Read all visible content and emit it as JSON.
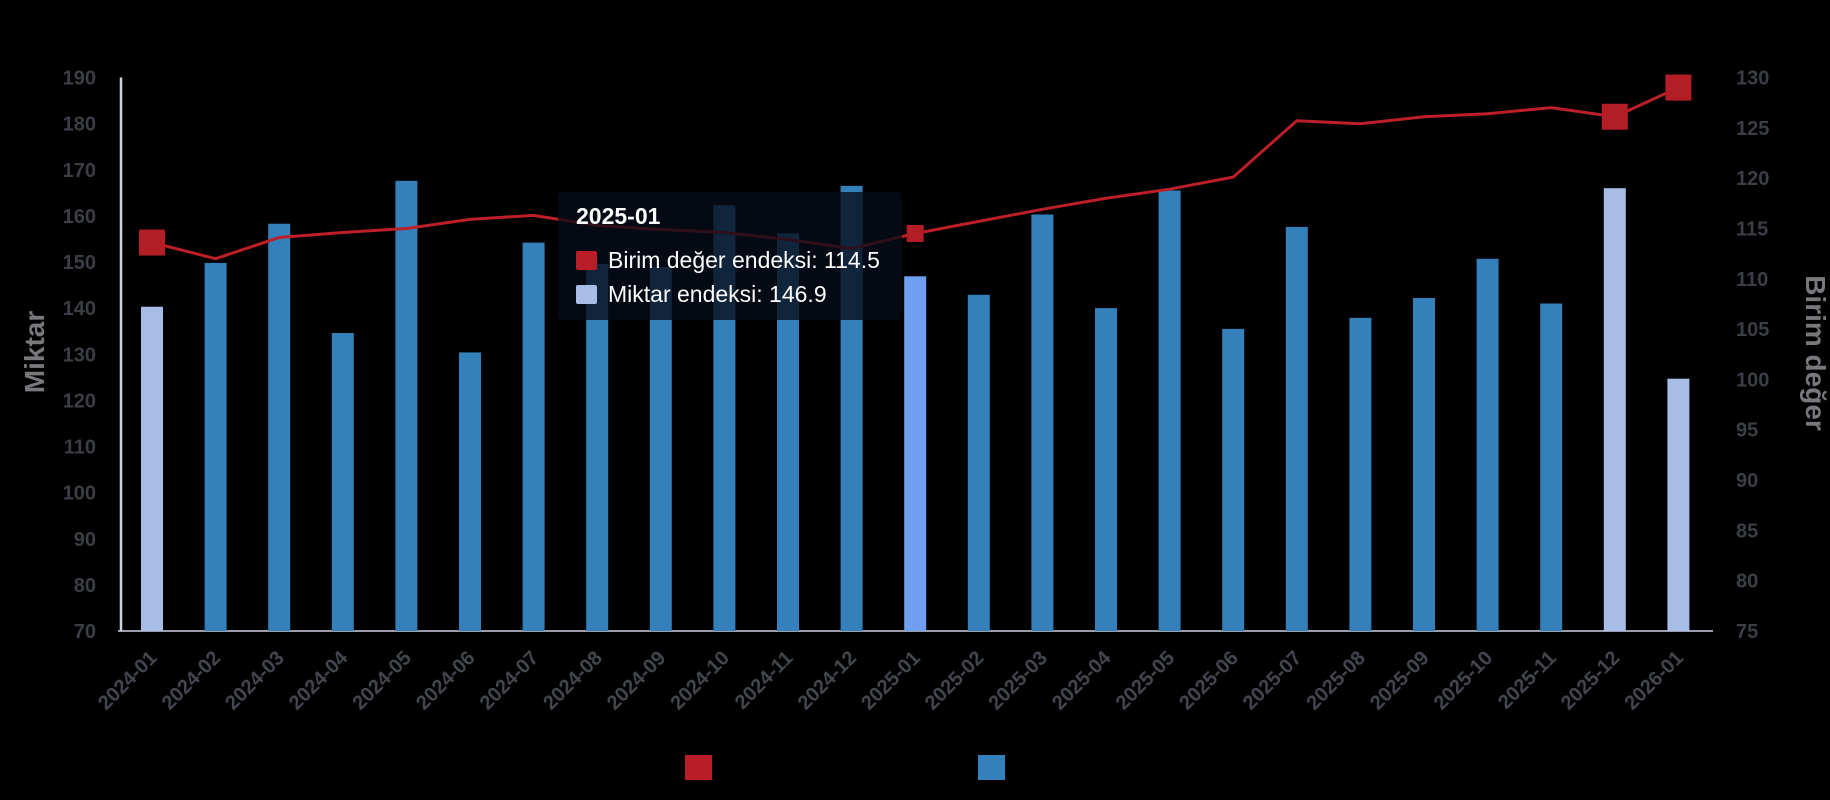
{
  "chart_data": {
    "type": "combo-bar-line",
    "categories": [
      "2024-01",
      "2024-02",
      "2024-03",
      "2024-04",
      "2024-05",
      "2024-06",
      "2024-07",
      "2024-08",
      "2024-09",
      "2024-10",
      "2024-11",
      "2024-12",
      "2025-01",
      "2025-02",
      "2025-03",
      "2025-04",
      "2025-05",
      "2025-06",
      "2025-07",
      "2025-08",
      "2025-09",
      "2025-10",
      "2025-11",
      "2025-12",
      "2026-01"
    ],
    "series": [
      {
        "name": "Miktar endeksi",
        "type": "bar",
        "axis": "left",
        "values": [
          140.3,
          149.8,
          158.3,
          134.6,
          167.6,
          130.4,
          154.2,
          149.6,
          148.9,
          162.3,
          156.2,
          166.5,
          146.9,
          142.9,
          160.3,
          140.0,
          165.5,
          135.5,
          157.6,
          137.9,
          142.2,
          150.7,
          141.0,
          166.0,
          124.7
        ]
      },
      {
        "name": "Birim değer endeksi",
        "type": "line",
        "axis": "right",
        "values": [
          113.6,
          112.0,
          114.1,
          114.6,
          115.0,
          115.9,
          116.3,
          115.3,
          114.9,
          114.6,
          113.9,
          113.0,
          114.5,
          115.7,
          116.9,
          118.0,
          118.9,
          120.1,
          125.7,
          125.4,
          126.1,
          126.4,
          127.0,
          126.1,
          129.0
        ]
      }
    ],
    "left_axis": {
      "title": "Miktar",
      "min": 70,
      "max": 190,
      "ticks": [
        70,
        80,
        90,
        100,
        110,
        120,
        130,
        140,
        150,
        160,
        170,
        180,
        190
      ]
    },
    "right_axis": {
      "title": "Birim değer",
      "min": 75,
      "max": 130,
      "ticks": [
        75,
        80,
        85,
        90,
        95,
        100,
        105,
        110,
        115,
        120,
        125,
        130
      ]
    },
    "grid": "off",
    "highlighted_category": "2025-01",
    "pale_bar_categories": [
      "2024-01",
      "2025-12",
      "2026-01"
    ],
    "big_marker_categories": [
      "2024-01",
      "2025-12",
      "2026-01"
    ],
    "small_marker_category": "2025-01",
    "tooltip": {
      "title": "2025-01",
      "rows": [
        {
          "series": "Birim değer endeksi",
          "value": "114.5",
          "text": "Birim değer endeksi: 114.5",
          "swatch_color": "#b91d27"
        },
        {
          "series": "Miktar endeksi",
          "value": "146.9",
          "text": "Miktar endeksi: 146.9",
          "swatch_color": "#a8bde6"
        }
      ]
    },
    "legend": [
      {
        "series": "Birim değer endeksi",
        "swatch_color": "#b91d27",
        "label_visible": false
      },
      {
        "series": "Miktar endeksi",
        "swatch_color": "#3380bb",
        "label_visible": false
      }
    ],
    "colors": {
      "background": "#000000",
      "bar": "#3380bb",
      "bar_pale": "#a8bde6",
      "bar_highlight": "#6f9fee",
      "line": "#bc1f27",
      "marker": "#b31d25",
      "axis_line": "#ccd3e2",
      "tick_label": "#3b3e44",
      "x_label": "#43464d",
      "axis_title": "#77797d",
      "tooltip_bg": "rgba(6,12,24,0.78)",
      "tooltip_text": "#ffffff"
    }
  }
}
